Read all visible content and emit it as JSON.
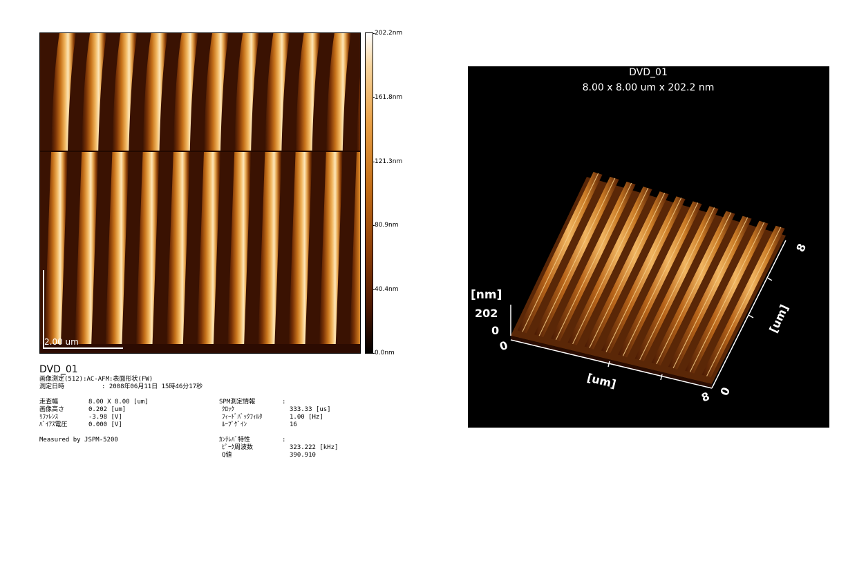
{
  "image2d": {
    "scale_bar_label": "2.00 um",
    "stripe_count": 11
  },
  "colorbar": {
    "ticks": [
      "202.2nm",
      "161.8nm",
      "121.3nm",
      "80.9nm",
      "40.4nm",
      "0.0nm"
    ],
    "colors": [
      "#ffffff",
      "#e9a046",
      "#c46e17",
      "#8f3f07",
      "#4b1702",
      "#000000"
    ]
  },
  "meta": {
    "title": "DVD_01",
    "mode_line": "画像測定(512):AC-AFM:表面形状(FW)",
    "date_label": "測定日時",
    "date_value": ":  2008年06月11日  15時46分17秒",
    "params": [
      {
        "label": "走査幅",
        "value": "8.00 X 8.00 [um]"
      },
      {
        "label": "画像高さ",
        "value": "0.202 [um]"
      },
      {
        "label": "ﾘﾌｧﾚﾝｽ",
        "value": "-3.98 [V]"
      },
      {
        "label": "ﾊﾞｲｱｽ電圧",
        "value": "0.000 [V]"
      }
    ],
    "measured_by": "Measured by JSPM-5200",
    "spm_header": "SPM測定情報",
    "spm_params": [
      {
        "label": "ｸﾛｯｸ",
        "value": "333.33 [us]"
      },
      {
        "label": "ﾌｨｰﾄﾞﾊﾞｯｸﾌｨﾙﾀ",
        "value": "1.00 [Hz]"
      },
      {
        "label": "ﾙｰﾌﾟｹﾞｲﾝ",
        "value": "16"
      }
    ],
    "cantilever_header": "ｶﾝﾁﾚﾊﾞ特性",
    "cantilever_params": [
      {
        "label": "ﾋﾟｰｸ周波数",
        "value": "323.222 [kHz]"
      },
      {
        "label": "Q値",
        "value": "390.910"
      }
    ],
    "colon": ":"
  },
  "view3d": {
    "title": "DVD_01",
    "subtitle": "8.00 x 8.00 um x 202.2 nm",
    "z_unit": "[nm]",
    "z_max": "202",
    "z_min": "0",
    "x_unit": "[um]",
    "y_unit": "[um]",
    "origin": "0",
    "x_end": "8",
    "y_start": "0",
    "y_end": "8"
  }
}
